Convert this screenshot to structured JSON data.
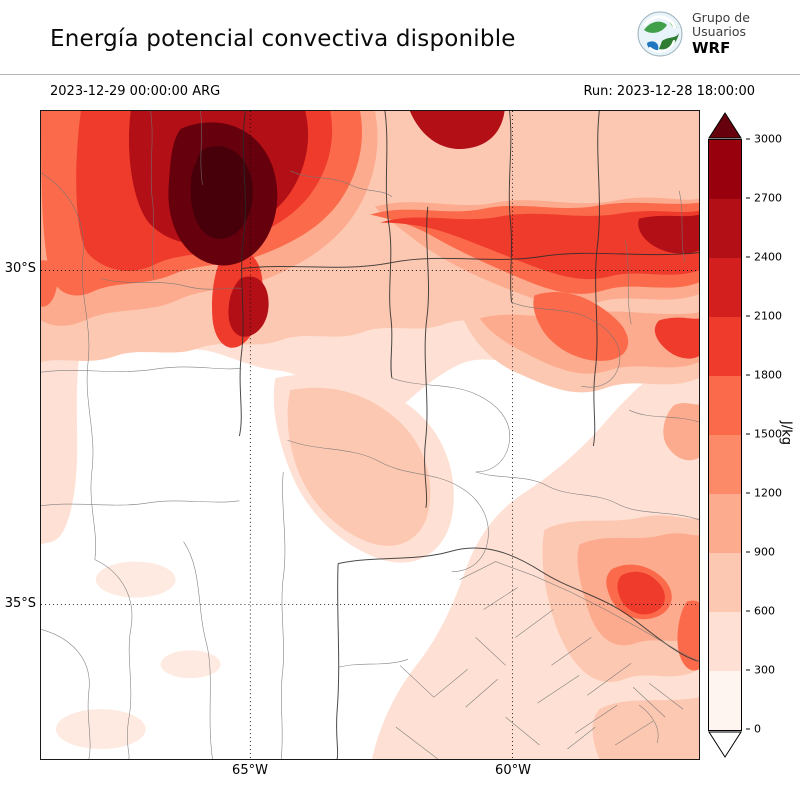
{
  "header": {
    "title": "Energía potencial convectiva disponible",
    "valid_time": "2023-12-29 00:00:00 ARG",
    "run_time": "Run: 2023-12-28 18:00:00",
    "logo": {
      "line1": "Grupo de",
      "line2": "Usuarios",
      "line3": "WRF"
    }
  },
  "map": {
    "lat_labels": [
      "30°S",
      "35°S"
    ],
    "lon_labels": [
      "65°W",
      "60°W"
    ]
  },
  "colorbar": {
    "units": "J/kg",
    "ticks": [
      "3000",
      "2700",
      "2400",
      "2100",
      "1800",
      "1500",
      "1200",
      "900",
      "600",
      "300",
      "0"
    ],
    "colors_top_to_bottom": [
      "#99000d",
      "#b30f16",
      "#d3201f",
      "#ef3b2c",
      "#fb6a4a",
      "#fc8a69",
      "#fcab8e",
      "#fdc8b2",
      "#fee1d4",
      "#fff5f0"
    ],
    "over_color": "#67000d",
    "under_color": "#ffffff"
  }
}
